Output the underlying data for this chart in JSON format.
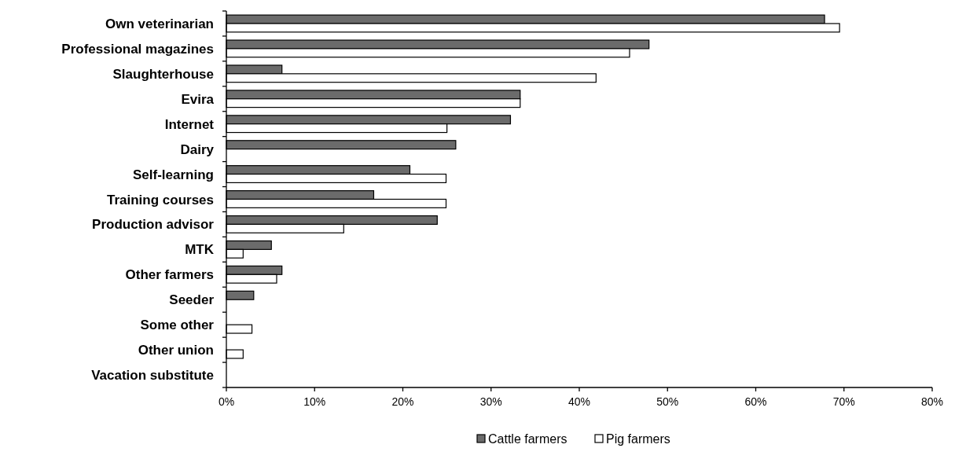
{
  "chart_data": {
    "type": "bar",
    "orientation": "horizontal",
    "categories": [
      "Own veterinarian",
      "Professional magazines",
      "Slaughterhouse",
      "Evira",
      "Internet",
      "Dairy",
      "Self-learning",
      "Training courses",
      "Production advisor",
      "MTK",
      "Other farmers",
      "Seeder",
      "Some other",
      "Other union",
      "Vacation substitute"
    ],
    "series": [
      {
        "name": "Cattle farmers",
        "color": "#6b6b6b",
        "values": [
          67.8,
          47.9,
          6.3,
          33.3,
          32.2,
          26.0,
          20.8,
          16.7,
          23.9,
          5.1,
          6.3,
          3.1,
          null,
          null,
          null
        ]
      },
      {
        "name": "Pig farmers",
        "color": "#ffffff",
        "values": [
          69.5,
          45.7,
          41.9,
          33.3,
          25.0,
          null,
          24.9,
          24.9,
          13.3,
          1.9,
          5.7,
          null,
          2.9,
          1.9,
          null
        ]
      }
    ],
    "xlim": [
      0,
      80
    ],
    "xticks": [
      {
        "value": 0,
        "label": "0%"
      },
      {
        "value": 10,
        "label": "10%"
      },
      {
        "value": 20,
        "label": "20%"
      },
      {
        "value": 30,
        "label": "30%"
      },
      {
        "value": 40,
        "label": "40%"
      },
      {
        "value": 50,
        "label": "50%"
      },
      {
        "value": 60,
        "label": "60%"
      },
      {
        "value": 70,
        "label": "70%"
      },
      {
        "value": 80,
        "label": "80%"
      }
    ],
    "grid": false,
    "legend": "bottom"
  }
}
